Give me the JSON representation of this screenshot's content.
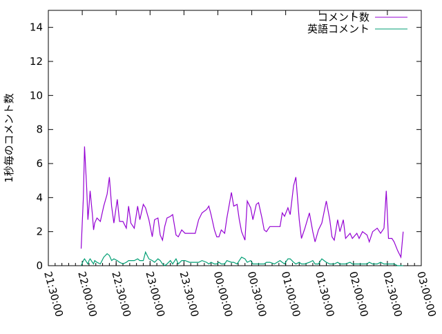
{
  "chart_data": {
    "type": "line",
    "title": "",
    "xlabel": "",
    "ylabel": "1秒毎のコメント数",
    "xlim": [
      "21:30:00",
      "03:00:00"
    ],
    "ylim": [
      0,
      15
    ],
    "x_ticks": [
      "21:30:00",
      "22:00:00",
      "22:30:00",
      "23:00:00",
      "23:30:00",
      "00:00:00",
      "00:30:00",
      "01:00:00",
      "01:30:00",
      "02:00:00",
      "02:30:00",
      "03:00:00"
    ],
    "y_ticks": [
      0,
      2,
      4,
      6,
      8,
      10,
      12,
      14
    ],
    "grid": false,
    "legend_position": "top-right",
    "x": [
      "21:59",
      "22:01",
      "22:02",
      "22:04",
      "22:05",
      "22:06",
      "22:07",
      "22:09",
      "22:10",
      "22:11",
      "22:13",
      "22:16",
      "22:19",
      "22:22",
      "22:24",
      "22:26",
      "22:28",
      "22:31",
      "22:33",
      "22:36",
      "22:39",
      "22:41",
      "22:43",
      "22:46",
      "22:49",
      "22:51",
      "22:54",
      "22:56",
      "22:59",
      "23:02",
      "23:04",
      "23:07",
      "23:09",
      "23:11",
      "23:13",
      "23:15",
      "23:18",
      "23:20",
      "23:23",
      "23:25",
      "23:28",
      "23:31",
      "23:35",
      "23:40",
      "23:43",
      "23:46",
      "23:50",
      "23:52",
      "23:54",
      "23:57",
      "23:59",
      "00:01",
      "00:03",
      "00:06",
      "00:08",
      "00:12",
      "00:14",
      "00:17",
      "00:19",
      "00:21",
      "00:24",
      "00:26",
      "00:29",
      "00:31",
      "00:34",
      "00:36",
      "00:39",
      "00:41",
      "00:43",
      "00:46",
      "00:50",
      "00:55",
      "00:57",
      "00:59",
      "01:02",
      "01:04",
      "01:07",
      "01:09",
      "01:12",
      "01:14",
      "01:17",
      "01:21",
      "01:24",
      "01:26",
      "01:29",
      "01:32",
      "01:36",
      "01:39",
      "01:41",
      "01:43",
      "01:46",
      "01:48",
      "01:51",
      "01:53",
      "01:57",
      "01:59",
      "02:03",
      "02:05",
      "02:08",
      "02:12",
      "02:14",
      "02:17",
      "02:19",
      "02:21",
      "02:24",
      "02:27",
      "02:29",
      "02:31",
      "02:34",
      "02:36",
      "02:39",
      "02:42",
      "02:44"
    ],
    "series": [
      {
        "name": "コメント数",
        "color": "#9400d3",
        "values": [
          1.0,
          4.0,
          7.0,
          4.5,
          2.7,
          3.5,
          4.4,
          3.0,
          2.1,
          2.5,
          2.8,
          2.6,
          3.5,
          4.2,
          5.2,
          3.5,
          2.5,
          3.9,
          2.6,
          2.6,
          2.2,
          3.5,
          2.5,
          2.2,
          3.5,
          2.7,
          3.6,
          3.4,
          2.7,
          1.7,
          2.7,
          2.8,
          1.8,
          1.5,
          2.3,
          2.8,
          2.9,
          3.0,
          1.8,
          1.7,
          2.1,
          1.9,
          1.9,
          1.9,
          2.7,
          3.1,
          3.3,
          3.5,
          3.0,
          2.1,
          1.7,
          1.7,
          2.1,
          1.9,
          2.8,
          4.3,
          3.5,
          3.6,
          2.7,
          2.0,
          1.5,
          3.8,
          3.4,
          2.7,
          3.6,
          3.7,
          2.8,
          2.1,
          2.0,
          2.3,
          2.3,
          2.3,
          3.1,
          2.9,
          3.4,
          3.0,
          4.7,
          5.2,
          2.7,
          1.6,
          2.2,
          3.1,
          2.0,
          1.4,
          2.1,
          2.5,
          3.8,
          2.7,
          1.7,
          1.5,
          2.7,
          2.0,
          2.7,
          1.6,
          1.9,
          1.6,
          1.9,
          1.6,
          2.0,
          1.8,
          1.4,
          2.0,
          2.1,
          2.2,
          1.9,
          2.2,
          4.4,
          1.6,
          1.6,
          1.4,
          0.9,
          0.5,
          2.0
        ]
      },
      {
        "name": "英語コメント",
        "color": "#009e73",
        "values": [
          0.0,
          0.3,
          0.4,
          0.2,
          0.1,
          0.3,
          0.4,
          0.2,
          0.1,
          0.3,
          0.2,
          0.1,
          0.5,
          0.7,
          0.6,
          0.3,
          0.4,
          0.3,
          0.2,
          0.1,
          0.2,
          0.3,
          0.3,
          0.3,
          0.4,
          0.3,
          0.3,
          0.8,
          0.4,
          0.3,
          0.2,
          0.4,
          0.3,
          0.1,
          0.0,
          0.1,
          0.3,
          0.1,
          0.4,
          0.1,
          0.3,
          0.3,
          0.2,
          0.2,
          0.2,
          0.3,
          0.2,
          0.1,
          0.2,
          0.1,
          0.1,
          0.2,
          0.1,
          0.1,
          0.3,
          0.2,
          0.2,
          0.1,
          0.3,
          0.5,
          0.4,
          0.2,
          0.3,
          0.1,
          0.1,
          0.1,
          0.1,
          0.1,
          0.2,
          0.2,
          0.1,
          0.3,
          0.2,
          0.1,
          0.4,
          0.4,
          0.2,
          0.1,
          0.2,
          0.1,
          0.1,
          0.2,
          0.3,
          0.1,
          0.1,
          0.4,
          0.2,
          0.1,
          0.1,
          0.1,
          0.2,
          0.1,
          0.1,
          0.1,
          0.2,
          0.1,
          0.1,
          0.1,
          0.1,
          0.1,
          0.2,
          0.1,
          0.1,
          0.1,
          0.2,
          0.1,
          0.1,
          0.1,
          0.1,
          0.1,
          0.0,
          0.0,
          0.0
        ]
      }
    ]
  }
}
